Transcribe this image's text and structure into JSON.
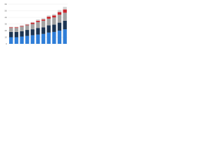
{
  "chart_data": {
    "type": "stacked-bar",
    "categories": [
      null,
      null,
      null,
      null,
      null,
      null,
      null,
      null,
      null,
      null,
      null
    ],
    "series": [
      {
        "color": "#2f7ed8",
        "values": [
          10,
          10,
          11,
          12,
          13,
          14,
          15,
          17,
          18,
          20,
          22
        ]
      },
      {
        "color": "#1c3553",
        "values": [
          8,
          8,
          8,
          9,
          9,
          10,
          10,
          11,
          11,
          12,
          13
        ]
      },
      {
        "color": "#a3a3a3",
        "values": [
          6,
          6,
          7,
          7,
          8,
          9,
          10,
          10,
          11,
          12,
          12
        ]
      },
      {
        "color": "#c8282e",
        "values": [
          1,
          1,
          1,
          1,
          2,
          2,
          2,
          3,
          3,
          4,
          5
        ]
      },
      {
        "color": "#d6d6d6",
        "values": [
          1,
          1,
          1,
          1,
          1,
          2,
          2,
          2,
          2,
          3,
          4
        ]
      }
    ],
    "ylim": [
      0,
      60
    ],
    "yticks": [
      0,
      10,
      20,
      30,
      40,
      50,
      60
    ],
    "grid": true
  }
}
